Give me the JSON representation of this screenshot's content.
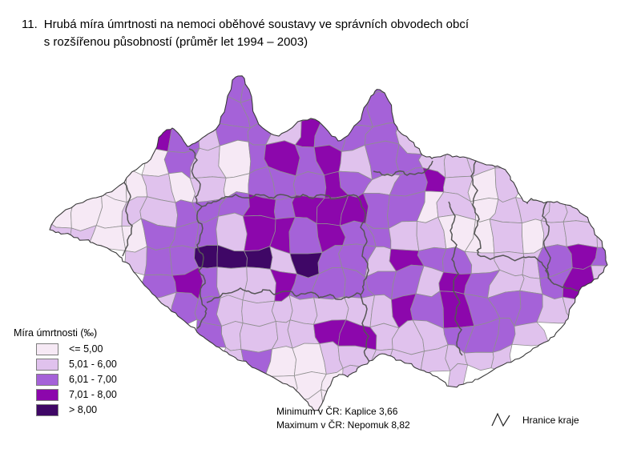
{
  "figure": {
    "title_number": "11.",
    "title_line1": "Hrubá míra úmrtnosti na nemoci oběhové soustavy ve správních obvodech obcí",
    "title_line2": "s rozšířenou působností (průměr let 1994 – 2003)"
  },
  "legend": {
    "title": "Míra úmrtnosti (‰)",
    "classes": [
      {
        "label": "<= 5,00",
        "color": "#f6e9f5"
      },
      {
        "label": "5,01 - 6,00",
        "color": "#e0c2ed"
      },
      {
        "label": "6,01 - 7,00",
        "color": "#a562d8"
      },
      {
        "label": "7,01 - 8,00",
        "color": "#8c07ac"
      },
      {
        "label": "> 8,00",
        "color": "#3f0766"
      }
    ]
  },
  "annotations": {
    "minimum": "Minimum v ČR: Kaplice 3,66",
    "maximum": "Maximum v ČR: Nepomuk 8,82",
    "boundary_legend": "Hranice kraje"
  },
  "map": {
    "name": "czech-republic-orp-choropleth",
    "district_border_color": "#8f8f8f",
    "region_border_color": "#565656",
    "outline_color": "#3a3a3a",
    "class_grid": [
      ".......33....3..........",
      ".......33.2.33..........",
      "....43233243332.........",
      "....132134342332222.....",
      "..11212133343234212.....",
      "1112233343444331212222..",
      "22113332443433221121222.",
      "...23355525332433222343.",
      "....3432243333324322342.",
      "....233222222243433322..",
      "......32222442223332....",
      ".......231122222222.....",
      ".........1112...2.......",
      "..........11............"
    ]
  }
}
